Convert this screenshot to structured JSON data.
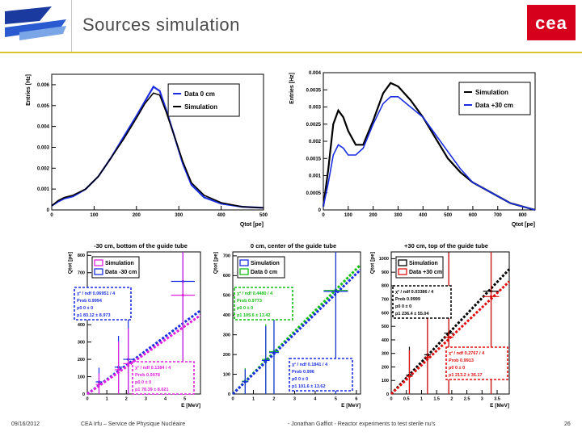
{
  "slide": {
    "title": "Sources simulation",
    "date": "09/16/2012",
    "org": "CEA Irfu – Service de Physique Nucléaire",
    "author": "- Jonathan Gaffiot - Reactor experiments to test sterile nu's",
    "page": "26",
    "logo_right": "cea"
  },
  "colors": {
    "blue": "#1a2ee0",
    "black": "#000000",
    "magenta": "#e020e0",
    "green": "#10c010",
    "red": "#e01010"
  },
  "chart_data": [
    {
      "type": "line",
      "ylabel": "Entries [Hz]",
      "xlabel": "Qtot [pe]",
      "xlim": [
        0,
        500
      ],
      "ylim": [
        0,
        0.0065
      ],
      "xticks": [
        "0",
        "100",
        "200",
        "300",
        "400",
        "500"
      ],
      "yticks": [
        "0",
        "0.001",
        "0.002",
        "0.003",
        "0.004",
        "0.005",
        "0.006"
      ],
      "legend": [
        "Data 0 cm",
        "Simulation"
      ],
      "series": [
        {
          "name": "Data 0 cm",
          "color": "#1a2ee0",
          "x": [
            0,
            15,
            30,
            50,
            80,
            110,
            140,
            170,
            200,
            220,
            240,
            255,
            270,
            290,
            310,
            330,
            360,
            400,
            450,
            500
          ],
          "y": [
            0.0002,
            0.0004,
            0.00055,
            0.00065,
            0.001,
            0.0016,
            0.0025,
            0.0035,
            0.0045,
            0.0052,
            0.0059,
            0.0057,
            0.0048,
            0.0035,
            0.0022,
            0.0012,
            0.0006,
            0.0003,
            0.00015,
            0.0001
          ]
        },
        {
          "name": "Simulation",
          "color": "#000000",
          "x": [
            0,
            15,
            30,
            50,
            80,
            110,
            140,
            170,
            200,
            220,
            240,
            255,
            270,
            290,
            310,
            330,
            360,
            400,
            450,
            500
          ],
          "y": [
            0.0002,
            0.00045,
            0.0006,
            0.0007,
            0.001,
            0.0016,
            0.0025,
            0.0034,
            0.0044,
            0.0051,
            0.0056,
            0.0055,
            0.0047,
            0.0035,
            0.0023,
            0.0013,
            0.0007,
            0.00035,
            0.00015,
            0.0001
          ]
        }
      ]
    },
    {
      "type": "line",
      "ylabel": "Entries [Hz]",
      "xlabel": "Qtot [pe]",
      "xlim": [
        0,
        850
      ],
      "ylim": [
        0,
        0.004
      ],
      "xticks": [
        "0",
        "100",
        "200",
        "300",
        "400",
        "500",
        "600",
        "700",
        "800"
      ],
      "yticks": [
        "0",
        "0.0005",
        "0.001",
        "0.0015",
        "0.002",
        "0.0025",
        "0.003",
        "0.0035",
        "0.004"
      ],
      "legend": [
        "Simulation",
        "Data +30 cm"
      ],
      "series": [
        {
          "name": "Simulation",
          "color": "#000000",
          "x": [
            0,
            20,
            40,
            60,
            80,
            100,
            130,
            160,
            200,
            240,
            270,
            300,
            350,
            400,
            450,
            500,
            550,
            600,
            650,
            700,
            750,
            800,
            850
          ],
          "y": [
            0.0001,
            0.0012,
            0.0025,
            0.0029,
            0.0027,
            0.0023,
            0.0019,
            0.0019,
            0.0026,
            0.0034,
            0.0037,
            0.0036,
            0.0032,
            0.0027,
            0.0021,
            0.0015,
            0.0011,
            0.0008,
            0.0006,
            0.0004,
            0.0002,
            0.0001,
            0
          ]
        },
        {
          "name": "Data +30 cm",
          "color": "#1a2ee0",
          "x": [
            0,
            20,
            40,
            60,
            80,
            100,
            130,
            160,
            200,
            240,
            270,
            300,
            350,
            400,
            450,
            500,
            550,
            600,
            650,
            700,
            750,
            800,
            850
          ],
          "y": [
            0.0001,
            0.0008,
            0.0016,
            0.0019,
            0.0018,
            0.0016,
            0.0016,
            0.0018,
            0.0025,
            0.0031,
            0.0033,
            0.0033,
            0.003,
            0.0027,
            0.0022,
            0.0017,
            0.0012,
            0.0008,
            0.0006,
            0.0004,
            0.0002,
            0.0001,
            0
          ]
        }
      ]
    },
    {
      "type": "scatter",
      "title": "-30 cm, bottom of the guide tube",
      "ylabel": "Qtot [pe]",
      "xlabel": "E [MeV]",
      "xlim": [
        0,
        5.8
      ],
      "ylim": [
        0,
        820
      ],
      "xticks": [
        "0",
        "1",
        "2",
        "3",
        "4",
        "5"
      ],
      "yticks": [
        "0",
        "100",
        "200",
        "300",
        "400",
        "500",
        "600",
        "700",
        "800"
      ],
      "legend": [
        "Simulation",
        "Data -30 cm"
      ],
      "series": [
        {
          "name": "Data -30 cm",
          "color": "#1a2ee0",
          "x": [
            0.6,
            1.6,
            2.1,
            4.9
          ],
          "y": [
            70,
            155,
            200,
            650
          ],
          "fit": {
            "p0": 0,
            "p1": 83.12
          }
        },
        {
          "name": "Simulation",
          "color": "#e020e0",
          "x": [
            0.6,
            1.6,
            2.1,
            4.9
          ],
          "y": [
            55,
            140,
            175,
            570
          ],
          "fit": {
            "p0": 0,
            "p1": 78.39
          }
        }
      ],
      "boxes": [
        {
          "color": "#1a2ee0",
          "lines": [
            "χ² / ndf  0.06951 / 4",
            "Prob    0.9994",
            "p0    0 ±  0",
            "p1   83.12 ± 8.973"
          ]
        },
        {
          "color": "#e020e0",
          "lines": [
            "χ² / ndf  0.1384 / 4",
            "Prob    0.9978",
            "p0    0 ±  0",
            "p1   78.39 ± 8.621"
          ]
        }
      ]
    },
    {
      "type": "scatter",
      "title": "0 cm, center of the guide tube",
      "ylabel": "Qtot [pe]",
      "xlabel": "E [MeV]",
      "xlim": [
        0,
        6.2
      ],
      "ylim": [
        0,
        720
      ],
      "xticks": [
        "0",
        "1",
        "2",
        "3",
        "4",
        "5",
        "6"
      ],
      "yticks": [
        "0",
        "100",
        "200",
        "300",
        "400",
        "500",
        "600",
        "700"
      ],
      "legend": [
        "Simulation",
        "Data 0 cm"
      ],
      "series": [
        {
          "name": "Data 0 cm",
          "color": "#10c010",
          "x": [
            0.6,
            1.6,
            2.0,
            5.0
          ],
          "y": [
            65,
            175,
            215,
            525
          ],
          "fit": {
            "p0": 0,
            "p1": 105.6
          }
        },
        {
          "name": "Simulation",
          "color": "#1a2ee0",
          "x": [
            0.6,
            1.6,
            2.0,
            5.0
          ],
          "y": [
            62,
            170,
            210,
            520
          ],
          "fit": {
            "p0": 0,
            "p1": 101.6
          }
        }
      ],
      "boxes": [
        {
          "color": "#10c010",
          "lines": [
            "χ² / ndf  0.4480 / 4",
            "Prob    0.9773",
            "p0    0 ±  0",
            "p1   105.6 ± 13.42"
          ]
        },
        {
          "color": "#1a2ee0",
          "lines": [
            "χ² / ndf  0.1841 / 4",
            "Prob    0.996",
            "p0    0 ±  0",
            "p1   101.6 ± 13.62"
          ]
        }
      ]
    },
    {
      "type": "scatter",
      "title": "+30 cm, top of the guide tube",
      "ylabel": "Qtot [pe]",
      "xlabel": "E [MeV]",
      "xlim": [
        0,
        3.9
      ],
      "ylim": [
        0,
        1050
      ],
      "xticks": [
        "0",
        "0.5",
        "1",
        "1.5",
        "2",
        "2.5",
        "3",
        "3.5"
      ],
      "yticks": [
        "0",
        "100",
        "200",
        "300",
        "400",
        "500",
        "600",
        "700",
        "800",
        "900",
        "1000"
      ],
      "legend": [
        "Simulation",
        "Data +30 cm"
      ],
      "series": [
        {
          "name": "Simulation",
          "color": "#000000",
          "x": [
            0.6,
            1.2,
            1.9,
            3.3
          ],
          "y": [
            140,
            290,
            450,
            760
          ],
          "fit": {
            "p0": 0,
            "p1": 236.4
          }
        },
        {
          "name": "Data +30 cm",
          "color": "#e01010",
          "x": [
            0.6,
            1.2,
            1.9,
            3.3
          ],
          "y": [
            130,
            270,
            420,
            720
          ],
          "fit": {
            "p0": 0,
            "p1": 213.2
          }
        }
      ],
      "boxes": [
        {
          "color": "#000000",
          "lines": [
            "χ² / ndf  0.03386 / 4",
            "Prob    0.9999",
            "p0    0 ±  0",
            "p1   236.4 ± 55.04"
          ]
        },
        {
          "color": "#e01010",
          "lines": [
            "χ² / ndf  0.2767 / 4",
            "Prob    0.9913",
            "p0    0 ±  0",
            "p1   213.2 ± 36.17"
          ]
        }
      ]
    }
  ]
}
